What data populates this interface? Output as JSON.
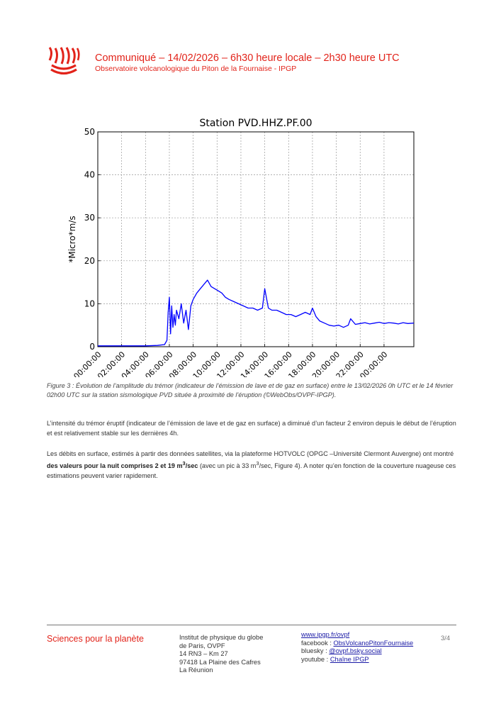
{
  "header": {
    "title": "Communiqué – 14/02/2026 – 6h30 heure locale – 2h30 heure UTC",
    "subtitle": "Observatoire volcanologique du Piton de la Fournaise - IPGP"
  },
  "colors": {
    "accent": "#e2231a",
    "series": "#0000ff",
    "link": "#1a1aa6"
  },
  "chart_data": {
    "type": "line",
    "title": "Station PVD.HHZ.PF.00",
    "ylabel": "*Micro*m/s",
    "xlabel": "",
    "ylim": [
      0,
      50
    ],
    "xlim": [
      0,
      26.5
    ],
    "grid": true,
    "yticks": [
      "0",
      "10",
      "20",
      "30",
      "40",
      "50"
    ],
    "xticks": [
      "00:00:00",
      "02:00:00",
      "04:00:00",
      "06:00:00",
      "08:00:00",
      "10:00:00",
      "12:00:00",
      "14:00:00",
      "16:00:00",
      "18:00:00",
      "20:00:00",
      "22:00:00",
      "00:00:00"
    ],
    "series": [
      {
        "x": [
          0,
          1,
          2,
          3,
          4,
          5,
          5.6,
          5.8,
          5.9,
          6.0,
          6.1,
          6.2,
          6.3,
          6.4,
          6.5,
          6.6,
          6.8,
          7.0,
          7.2,
          7.4,
          7.6,
          7.8,
          8.0,
          8.3,
          8.6,
          8.9,
          9.2,
          9.5,
          9.8,
          10.1,
          10.4,
          10.7,
          11.0,
          11.4,
          11.8,
          12.2,
          12.6,
          13.0,
          13.4,
          13.8,
          14.0,
          14.3,
          14.6,
          15.0,
          15.4,
          15.8,
          16.2,
          16.6,
          17.0,
          17.4,
          17.8,
          18.0,
          18.3,
          18.6,
          19.0,
          19.4,
          19.8,
          20.2,
          20.6,
          21.0,
          21.2,
          21.6,
          22.0,
          22.4,
          22.8,
          23.2,
          23.6,
          24.0,
          24.4,
          24.8,
          25.2,
          25.6,
          26.0,
          26.5
        ],
        "y": [
          0.2,
          0.2,
          0.2,
          0.2,
          0.2,
          0.3,
          0.5,
          1.5,
          8.0,
          11.5,
          3.0,
          9.5,
          4.5,
          7.5,
          5.0,
          8.5,
          6.5,
          10.0,
          5.5,
          8.5,
          4.0,
          9.5,
          11.0,
          12.5,
          13.5,
          14.5,
          15.5,
          14.0,
          13.5,
          13.0,
          12.5,
          11.5,
          11.0,
          10.5,
          10.0,
          9.5,
          9.0,
          9.0,
          8.5,
          9.0,
          13.5,
          9.0,
          8.5,
          8.5,
          8.0,
          7.5,
          7.5,
          7.0,
          7.5,
          8.0,
          7.5,
          9.0,
          7.0,
          6.0,
          5.5,
          5.0,
          4.8,
          5.0,
          4.5,
          5.0,
          6.5,
          5.2,
          5.4,
          5.6,
          5.3,
          5.5,
          5.7,
          5.4,
          5.6,
          5.5,
          5.3,
          5.6,
          5.4,
          5.5
        ]
      }
    ]
  },
  "caption": "Figure 3 : Évolution de l’amplitude du trémor (indicateur de l’émission de lave et de gaz en surface) entre le 13/02/2026 0h UTC et le 14 février 02h00 UTC sur la station sismologique PVD située à proximité de l’éruption (©WebObs/OVPF-IPGP).",
  "paragraphs": {
    "p1": "L’intensité du trémor éruptif (indicateur de l’émission de lave et de gaz en surface) a diminué d’un facteur 2 environ depuis le début de l’éruption et est relativement stable sur les dernières 4h.",
    "p2_start": "Les débits en surface, estimés à partir des données satellites, via la plateforme HOTVOLC (OPGC –Université Clermont Auvergne) ont montré ",
    "p2_bold1": "des valeurs pour la nuit comprises 2 et 19 m",
    "p2_sup1": "3",
    "p2_bold2": "/sec",
    "p2_mid1": " (avec un pic à 33 m",
    "p2_sup2": "3",
    "p2_mid2": "/sec, Figure 4). A noter qu’en fonction de la couverture nuageuse ces estimations peuvent varier rapidement."
  },
  "footer": {
    "slogan": "Sciences pour la planète",
    "address": [
      "Institut de physique du globe",
      "de Paris, OVPF",
      "14 RN3 – Km 27",
      "97418 La Plaine des Cafres",
      "La Réunion"
    ],
    "website": "www.ipgp.fr/ovpf",
    "facebook_label": "facebook : ",
    "facebook_link": "ObsVolcanoPitonFournaise",
    "bluesky_label": "bluesky : ",
    "bluesky_link": "@ovpf.bsky.social",
    "youtube_label": "youtube : ",
    "youtube_link": "Chaîne IPGP",
    "page": "3/4"
  }
}
